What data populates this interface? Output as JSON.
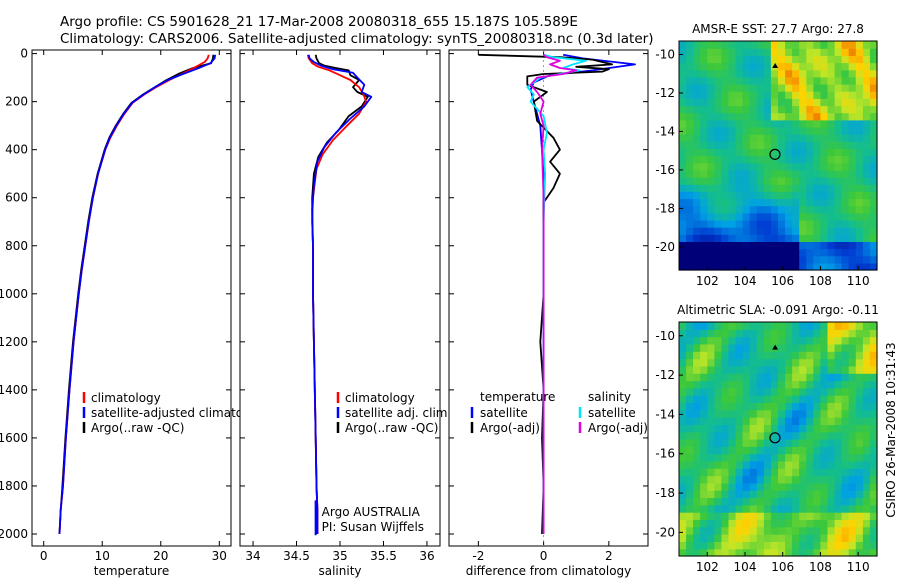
{
  "header": {
    "line1": "Argo profile: CS 5901628_21 17-Mar-2008 20080318_655 15.187S 105.589E",
    "line2": "Climatology: CARS2006. Satellite-adjusted climatology: synTS_20080318.nc (0.3d later)"
  },
  "side_text": "CSIRO 26-Mar-2008 10:31:43",
  "colors": {
    "climatology": "#ff0000",
    "satellite": "#0000ff",
    "argo": "#000000",
    "cyan": "#00e5ff",
    "magenta": "#e000e0"
  },
  "chart_data": [
    {
      "type": "line",
      "id": "temperature",
      "xlabel": "temperature",
      "xlim": [
        -2,
        32
      ],
      "ylim": [
        2050,
        -15
      ],
      "xticks": [
        0,
        10,
        20,
        30
      ],
      "yticks": [
        0,
        200,
        400,
        600,
        800,
        1000,
        1200,
        1400,
        1600,
        1800,
        2000
      ],
      "legend": [
        "climatology",
        "satellite-adjusted climatology",
        "Argo(..raw -QC)"
      ],
      "series": [
        {
          "name": "Argo(..raw -QC)",
          "color": "#000000",
          "points": [
            [
              29.0,
              5
            ],
            [
              28.9,
              20
            ],
            [
              28.6,
              40
            ],
            [
              25.5,
              60
            ],
            [
              23.0,
              85
            ],
            [
              21.0,
              110
            ],
            [
              19.0,
              140
            ],
            [
              17.0,
              170
            ],
            [
              15.0,
              205
            ],
            [
              13.6,
              250
            ],
            [
              12.3,
              300
            ],
            [
              11.2,
              350
            ],
            [
              10.4,
              400
            ],
            [
              9.2,
              500
            ],
            [
              8.3,
              600
            ],
            [
              7.6,
              700
            ],
            [
              7.0,
              800
            ],
            [
              6.4,
              900
            ],
            [
              5.9,
              1000
            ],
            [
              5.0,
              1200
            ],
            [
              4.3,
              1400
            ],
            [
              3.7,
              1600
            ],
            [
              3.2,
              1800
            ],
            [
              2.9,
              1900
            ],
            [
              2.7,
              2000
            ]
          ]
        },
        {
          "name": "climatology",
          "color": "#ff0000",
          "points": [
            [
              28.2,
              5
            ],
            [
              28.0,
              20
            ],
            [
              27.5,
              35
            ],
            [
              26.0,
              55
            ],
            [
              24.0,
              80
            ],
            [
              21.5,
              110
            ],
            [
              19.2,
              140
            ],
            [
              17.2,
              170
            ],
            [
              15.2,
              205
            ],
            [
              13.8,
              250
            ],
            [
              12.5,
              300
            ],
            [
              11.4,
              350
            ],
            [
              10.5,
              400
            ],
            [
              9.3,
              500
            ],
            [
              8.4,
              600
            ],
            [
              7.7,
              700
            ],
            [
              7.1,
              800
            ],
            [
              6.5,
              900
            ],
            [
              6.0,
              1000
            ],
            [
              5.1,
              1200
            ],
            [
              4.4,
              1400
            ],
            [
              3.8,
              1600
            ],
            [
              3.3,
              1800
            ],
            [
              2.9,
              1900
            ],
            [
              2.7,
              2000
            ]
          ]
        },
        {
          "name": "satellite-adjusted climatology",
          "color": "#0000ff",
          "points": [
            [
              29.3,
              5
            ],
            [
              29.2,
              20
            ],
            [
              28.5,
              40
            ],
            [
              26.5,
              60
            ],
            [
              23.8,
              85
            ],
            [
              21.2,
              110
            ],
            [
              19.0,
              140
            ],
            [
              17.1,
              170
            ],
            [
              15.1,
              205
            ],
            [
              13.7,
              250
            ],
            [
              12.4,
              300
            ],
            [
              11.3,
              350
            ],
            [
              10.5,
              400
            ],
            [
              9.3,
              500
            ],
            [
              8.4,
              600
            ],
            [
              7.7,
              700
            ],
            [
              7.1,
              800
            ],
            [
              6.5,
              900
            ],
            [
              6.0,
              1000
            ],
            [
              5.1,
              1200
            ],
            [
              4.4,
              1400
            ],
            [
              3.8,
              1600
            ],
            [
              3.3,
              1800
            ],
            [
              2.9,
              1900
            ],
            [
              2.7,
              2000
            ]
          ]
        }
      ]
    },
    {
      "type": "line",
      "id": "salinity",
      "xlabel": "salinity",
      "xlim": [
        33.85,
        36.15
      ],
      "ylim": [
        2050,
        -15
      ],
      "xticks": [
        34,
        34.5,
        35,
        35.5,
        36
      ],
      "xticklabels": [
        "34",
        "34.5",
        "35",
        "35.5",
        "36"
      ],
      "legend": [
        "climatology",
        "satellite adj. clim.",
        "Argo(..raw -QC)"
      ],
      "annotation": [
        "Argo AUSTRALIA",
        "PI: Susan Wijffels"
      ],
      "series": [
        {
          "name": "Argo(..raw -QC)",
          "color": "#000000",
          "points": [
            [
              34.72,
              5
            ],
            [
              34.73,
              20
            ],
            [
              34.76,
              40
            ],
            [
              34.82,
              50
            ],
            [
              34.95,
              60
            ],
            [
              35.1,
              70
            ],
            [
              35.12,
              90
            ],
            [
              35.22,
              110
            ],
            [
              35.15,
              140
            ],
            [
              35.2,
              160
            ],
            [
              35.32,
              180
            ],
            [
              35.25,
              220
            ],
            [
              35.1,
              260
            ],
            [
              34.98,
              320
            ],
            [
              34.85,
              370
            ],
            [
              34.75,
              430
            ],
            [
              34.7,
              500
            ],
            [
              34.68,
              600
            ],
            [
              34.68,
              700
            ],
            [
              34.69,
              800
            ],
            [
              34.69,
              1000
            ],
            [
              34.7,
              1200
            ],
            [
              34.71,
              1400
            ],
            [
              34.72,
              1600
            ],
            [
              34.73,
              1800
            ],
            [
              34.74,
              1900
            ],
            [
              34.74,
              2000
            ]
          ]
        },
        {
          "name": "climatology",
          "color": "#ff0000",
          "points": [
            [
              34.63,
              5
            ],
            [
              34.64,
              20
            ],
            [
              34.68,
              40
            ],
            [
              34.75,
              55
            ],
            [
              34.88,
              70
            ],
            [
              35.0,
              90
            ],
            [
              35.12,
              110
            ],
            [
              35.22,
              140
            ],
            [
              35.27,
              170
            ],
            [
              35.3,
              200
            ],
            [
              35.22,
              250
            ],
            [
              35.08,
              300
            ],
            [
              34.92,
              360
            ],
            [
              34.8,
              420
            ],
            [
              34.73,
              480
            ],
            [
              34.69,
              600
            ],
            [
              34.68,
              700
            ],
            [
              34.69,
              800
            ],
            [
              34.69,
              1000
            ],
            [
              34.7,
              1200
            ],
            [
              34.71,
              1400
            ],
            [
              34.72,
              1600
            ],
            [
              34.73,
              1800
            ],
            [
              34.74,
              1900
            ],
            [
              34.74,
              2000
            ]
          ]
        },
        {
          "name": "satellite adj. clim.",
          "color": "#0000ff",
          "points": [
            [
              34.64,
              5
            ],
            [
              34.65,
              20
            ],
            [
              34.7,
              35
            ],
            [
              34.78,
              50
            ],
            [
              34.92,
              65
            ],
            [
              35.15,
              80
            ],
            [
              35.2,
              100
            ],
            [
              35.28,
              130
            ],
            [
              35.25,
              160
            ],
            [
              35.36,
              180
            ],
            [
              35.28,
              220
            ],
            [
              35.12,
              270
            ],
            [
              34.95,
              330
            ],
            [
              34.82,
              390
            ],
            [
              34.74,
              450
            ],
            [
              34.7,
              550
            ],
            [
              34.68,
              650
            ],
            [
              34.69,
              800
            ],
            [
              34.69,
              1000
            ],
            [
              34.7,
              1200
            ],
            [
              34.71,
              1400
            ],
            [
              34.72,
              1600
            ],
            [
              34.73,
              1800
            ],
            [
              34.74,
              1900
            ],
            [
              34.74,
              2000
            ]
          ]
        }
      ]
    },
    {
      "type": "line",
      "id": "difference",
      "xlabel": "difference from climatology",
      "xlim": [
        -2.9,
        3.2
      ],
      "ylim": [
        2050,
        -15
      ],
      "xticks": [
        -2,
        0,
        2
      ],
      "legend_groups": [
        {
          "title": "temperature",
          "items": [
            "satellite",
            "Argo(-adj)"
          ]
        },
        {
          "title": "salinity",
          "items": [
            "satellite",
            "Argo(-adj)"
          ]
        }
      ],
      "series": [
        {
          "name": "temperature satellite",
          "color": "#0000ff",
          "points": [
            [
              0.6,
              5
            ],
            [
              1.2,
              20
            ],
            [
              2.8,
              45
            ],
            [
              1.5,
              70
            ],
            [
              0.2,
              90
            ],
            [
              -0.3,
              120
            ],
            [
              -0.4,
              150
            ],
            [
              -0.3,
              200
            ],
            [
              -0.1,
              300
            ],
            [
              0.0,
              500
            ],
            [
              0.0,
              1000
            ],
            [
              0.0,
              1500
            ],
            [
              0.0,
              2000
            ]
          ]
        },
        {
          "name": "temperature Argo(-adj)",
          "color": "#000000",
          "points": [
            [
              -2.0,
              5
            ],
            [
              0.5,
              15
            ],
            [
              1.5,
              25
            ],
            [
              2.1,
              45
            ],
            [
              1.0,
              55
            ],
            [
              2.0,
              65
            ],
            [
              1.8,
              75
            ],
            [
              0.0,
              85
            ],
            [
              -0.5,
              95
            ],
            [
              -0.5,
              130
            ],
            [
              0.1,
              160
            ],
            [
              -0.3,
              200
            ],
            [
              -0.2,
              280
            ],
            [
              0.3,
              350
            ],
            [
              0.5,
              400
            ],
            [
              0.2,
              450
            ],
            [
              0.5,
              500
            ],
            [
              0.3,
              560
            ],
            [
              0.0,
              620
            ],
            [
              0.0,
              1000
            ],
            [
              -0.1,
              1200
            ],
            [
              0.0,
              1400
            ],
            [
              -0.05,
              1600
            ],
            [
              0.0,
              1800
            ],
            [
              -0.05,
              2000
            ]
          ]
        },
        {
          "name": "salinity satellite",
          "color": "#00e5ff",
          "points": [
            [
              0.0,
              5
            ],
            [
              0.3,
              15
            ],
            [
              1.3,
              30
            ],
            [
              0.9,
              45
            ],
            [
              0.6,
              60
            ],
            [
              1.1,
              70
            ],
            [
              0.5,
              85
            ],
            [
              -0.1,
              100
            ],
            [
              -0.5,
              140
            ],
            [
              -0.3,
              170
            ],
            [
              -0.4,
              200
            ],
            [
              0.0,
              260
            ],
            [
              0.1,
              330
            ],
            [
              0.0,
              400
            ],
            [
              0.05,
              500
            ],
            [
              0.0,
              700
            ],
            [
              0.0,
              1000
            ],
            [
              0.0,
              1500
            ],
            [
              0.0,
              2000
            ]
          ]
        },
        {
          "name": "salinity Argo(-adj)",
          "color": "#e000e0",
          "points": [
            [
              0.0,
              5
            ],
            [
              0.1,
              15
            ],
            [
              0.5,
              30
            ],
            [
              0.2,
              45
            ],
            [
              0.5,
              60
            ],
            [
              1.0,
              70
            ],
            [
              0.6,
              85
            ],
            [
              -0.2,
              100
            ],
            [
              -0.4,
              130
            ],
            [
              -0.2,
              160
            ],
            [
              -0.1,
              180
            ],
            [
              0.0,
              200
            ],
            [
              -0.1,
              250
            ],
            [
              0.0,
              300
            ],
            [
              -0.05,
              400
            ],
            [
              0.0,
              600
            ],
            [
              0.0,
              1000
            ],
            [
              0.0,
              1500
            ],
            [
              0.0,
              2000
            ]
          ]
        }
      ]
    },
    {
      "type": "heatmap",
      "id": "sst-map",
      "title": "AMSR-E SST: 27.7  Argo: 27.8",
      "xlim": [
        100.5,
        111
      ],
      "ylim": [
        -21.2,
        -9.3
      ],
      "xticks": [
        102,
        104,
        106,
        108,
        110
      ],
      "yticks": [
        -10,
        -12,
        -14,
        -16,
        -18,
        -20
      ],
      "marker": {
        "lon": 105.59,
        "lat": -15.19
      },
      "arrow": {
        "lon": 105.6,
        "lat": -10.6
      }
    },
    {
      "type": "heatmap",
      "id": "sla-map",
      "title": "Altimetric SLA: -0.091  Argo: -0.11",
      "xlim": [
        100.5,
        111
      ],
      "ylim": [
        -21.2,
        -9.3
      ],
      "xticks": [
        102,
        104,
        106,
        108,
        110
      ],
      "yticks": [
        -10,
        -12,
        -14,
        -16,
        -18,
        -20
      ],
      "marker": {
        "lon": 105.59,
        "lat": -15.19
      },
      "arrow": {
        "lon": 105.6,
        "lat": -10.6
      }
    }
  ]
}
